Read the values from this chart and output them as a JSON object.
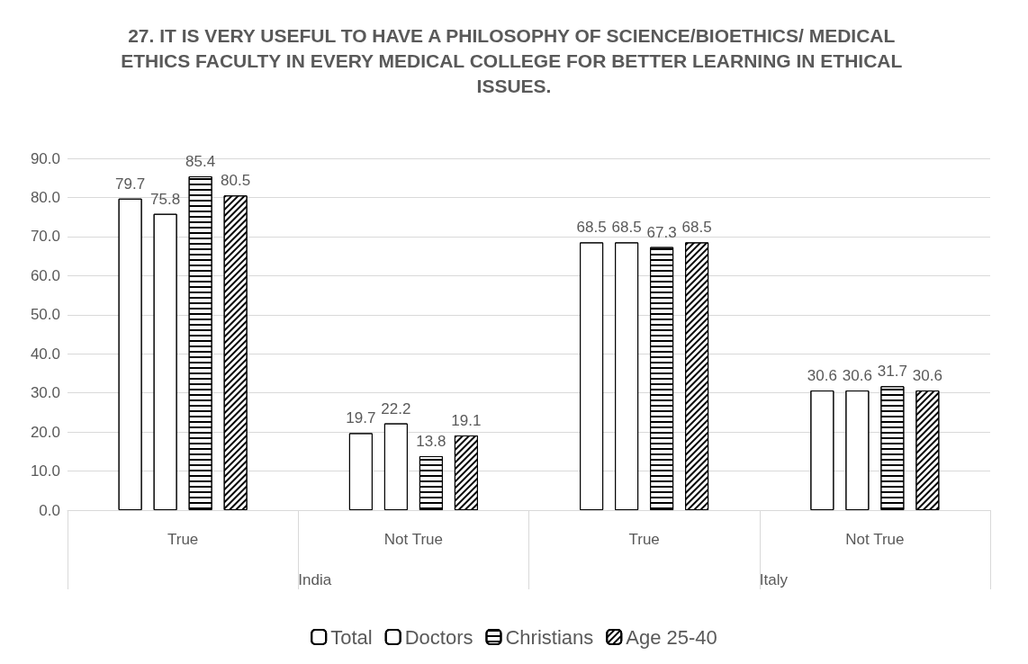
{
  "chart_data": {
    "type": "bar",
    "title": "27. IT IS VERY USEFUL TO HAVE A PHILOSOPHY OF SCIENCE/BIOETHICS/ MEDICAL ETHICS FACULTY IN EVERY MEDICAL COLLEGE FOR BETTER LEARNING IN ETHICAL ISSUES.",
    "categories": [
      "True",
      "Not True",
      "True",
      "Not True"
    ],
    "annotations": [
      "India",
      "Italy"
    ],
    "series": [
      {
        "name": "Total",
        "color": "#ffffff",
        "values": [
          79.7,
          19.7,
          68.5,
          30.6
        ]
      },
      {
        "name": "Doctors",
        "color": "#ffffff",
        "values": [
          75.8,
          22.2,
          68.5,
          30.6
        ]
      },
      {
        "name": "Christians",
        "color": "#ffffff",
        "values": [
          85.4,
          13.8,
          67.3,
          31.7
        ]
      },
      {
        "name": "Age 25-40",
        "color": "#ffffff",
        "values": [
          80.5,
          19.1,
          68.5,
          30.6
        ]
      }
    ],
    "ylim": [
      0,
      90
    ],
    "yticks": [
      {
        "value": 0,
        "label": "0.0"
      },
      {
        "value": 10,
        "label": "10.0"
      },
      {
        "value": 20,
        "label": "20.0"
      },
      {
        "value": 30,
        "label": "30.0"
      },
      {
        "value": 40,
        "label": "40.0"
      },
      {
        "value": 50,
        "label": "50.0"
      },
      {
        "value": 60,
        "label": "60.0"
      },
      {
        "value": 70,
        "label": "70.0"
      },
      {
        "value": 80,
        "label": "80.0"
      },
      {
        "value": 90,
        "label": "90.0"
      }
    ],
    "grid": "y",
    "legend": "bottom",
    "data_labels": true
  }
}
